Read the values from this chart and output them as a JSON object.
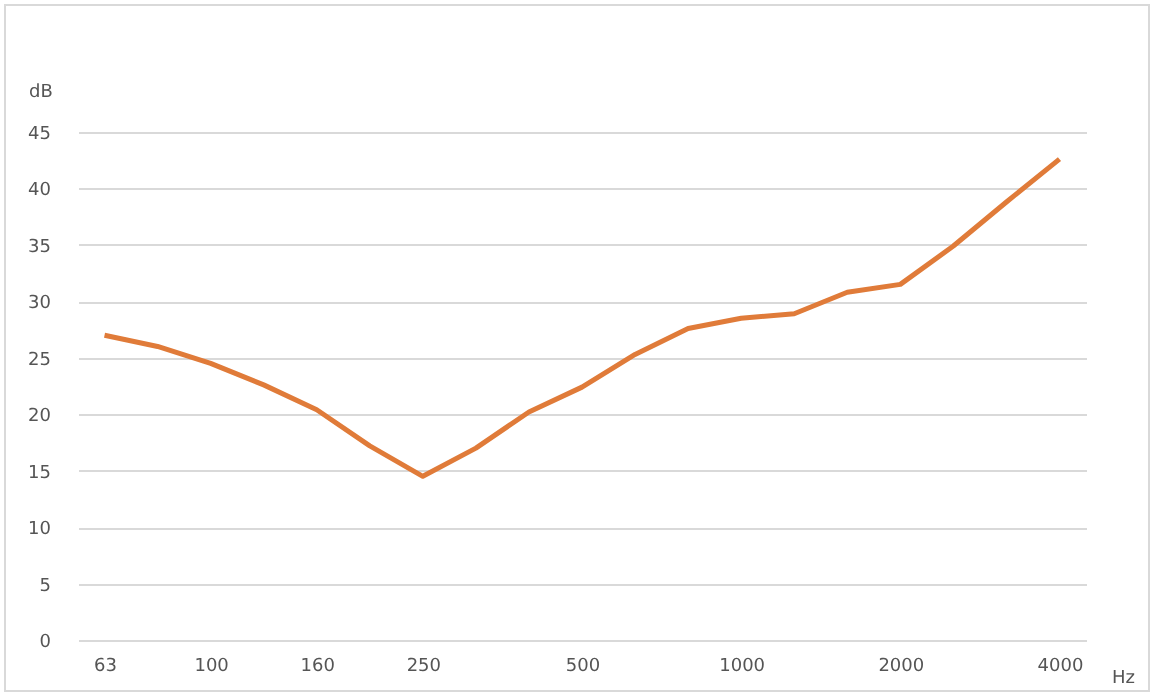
{
  "chart_data": {
    "type": "line",
    "xlabel": "Hz",
    "ylabel": "dB",
    "categories": [
      "63",
      null,
      "100",
      null,
      "160",
      null,
      "250",
      null,
      null,
      "500",
      null,
      null,
      "1000",
      null,
      null,
      "2000",
      null,
      null,
      "4000"
    ],
    "series": [
      {
        "color": "#e07b39",
        "values": [
          27,
          26,
          24.5,
          22.6,
          20.4,
          17.2,
          14.5,
          17,
          20.2,
          22.4,
          25.3,
          27.6,
          28.5,
          28.9,
          30.8,
          31.5,
          34.9,
          38.8,
          42.6
        ]
      }
    ],
    "ylim": [
      0,
      45
    ],
    "yticks": [
      0,
      5,
      10,
      15,
      20,
      25,
      30,
      35,
      40,
      45
    ],
    "grid": "y",
    "marker": "none",
    "line_style": "solid"
  }
}
